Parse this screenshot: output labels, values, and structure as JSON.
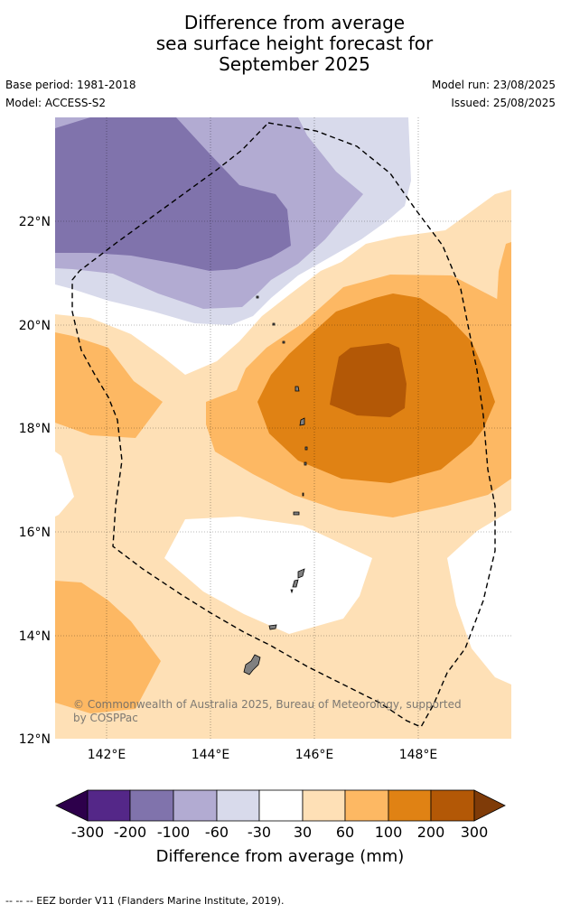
{
  "title": {
    "line1": "Difference from average",
    "line2": "sea surface height forecast for",
    "line3": "September 2025"
  },
  "meta": {
    "base_period": "Base period: 1981-2018",
    "model": "Model: ACCESS-S2",
    "model_run": "Model run: 23/08/2025",
    "issued": "Issued: 25/08/2025"
  },
  "map": {
    "lon_labels": [
      "142°E",
      "144°E",
      "146°E",
      "148°E"
    ],
    "lat_labels": [
      "22°N",
      "20°N",
      "18°N",
      "16°N",
      "14°N",
      "12°N"
    ],
    "copyright_line1": "© Commonwealth of Australia 2025, Bureau of Meteorology, supported",
    "copyright_line2": "by COSPPac",
    "eez_line_style": "dashed",
    "land_color": "#808080"
  },
  "colorbar": {
    "tick_labels": [
      "-300",
      "-200",
      "-100",
      "-60",
      "-30",
      "30",
      "60",
      "100",
      "200",
      "300"
    ],
    "title": "Difference from average (mm)",
    "under_color": "#2d004b",
    "over_color": "#7f3b08",
    "colors": [
      "#542788",
      "#8073ac",
      "#b2abd2",
      "#d8daeb",
      "#ffffff",
      "#fee0b6",
      "#fdb863",
      "#e08214",
      "#b35806"
    ]
  },
  "footnote": "--  --  -- EEZ border V11 (Flanders Marine Institute, 2019)."
}
